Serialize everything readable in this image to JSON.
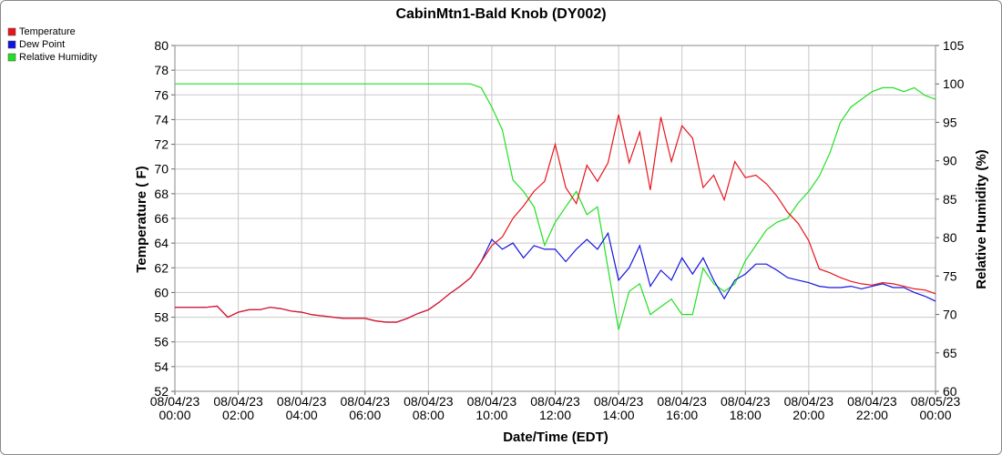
{
  "chart_data": {
    "type": "line",
    "title": "CabinMtn1-Bald Knob (DY002)",
    "x_label": "Date/Time (EDT)",
    "y_label": "Temperature ( F)",
    "y2_label": "Relative Humidity (%)",
    "x": [
      "08/04/23 00:00",
      "08/04/23 00:20",
      "08/04/23 00:40",
      "08/04/23 01:00",
      "08/04/23 01:20",
      "08/04/23 01:40",
      "08/04/23 02:00",
      "08/04/23 02:20",
      "08/04/23 02:40",
      "08/04/23 03:00",
      "08/04/23 03:20",
      "08/04/23 03:40",
      "08/04/23 04:00",
      "08/04/23 04:20",
      "08/04/23 04:40",
      "08/04/23 05:00",
      "08/04/23 05:20",
      "08/04/23 05:40",
      "08/04/23 06:00",
      "08/04/23 06:20",
      "08/04/23 06:40",
      "08/04/23 07:00",
      "08/04/23 07:20",
      "08/04/23 07:40",
      "08/04/23 08:00",
      "08/04/23 08:20",
      "08/04/23 08:40",
      "08/04/23 09:00",
      "08/04/23 09:20",
      "08/04/23 09:40",
      "08/04/23 10:00",
      "08/04/23 10:20",
      "08/04/23 10:40",
      "08/04/23 11:00",
      "08/04/23 11:20",
      "08/04/23 11:40",
      "08/04/23 12:00",
      "08/04/23 12:20",
      "08/04/23 12:40",
      "08/04/23 13:00",
      "08/04/23 13:20",
      "08/04/23 13:40",
      "08/04/23 14:00",
      "08/04/23 14:20",
      "08/04/23 14:40",
      "08/04/23 15:00",
      "08/04/23 15:20",
      "08/04/23 15:40",
      "08/04/23 16:00",
      "08/04/23 16:20",
      "08/04/23 16:40",
      "08/04/23 17:00",
      "08/04/23 17:20",
      "08/04/23 17:40",
      "08/04/23 18:00",
      "08/04/23 18:20",
      "08/04/23 18:40",
      "08/04/23 19:00",
      "08/04/23 19:20",
      "08/04/23 19:40",
      "08/04/23 20:00",
      "08/04/23 20:20",
      "08/04/23 20:40",
      "08/04/23 21:00",
      "08/04/23 21:20",
      "08/04/23 21:40",
      "08/04/23 22:00",
      "08/04/23 22:20",
      "08/04/23 22:40",
      "08/04/23 23:00",
      "08/04/23 23:20",
      "08/04/23 23:40",
      "08/05/23 00:00"
    ],
    "series": [
      {
        "name": "Temperature",
        "color": "#e8141c",
        "values": [
          58.8,
          58.8,
          58.8,
          58.8,
          58.9,
          58.0,
          58.4,
          58.6,
          58.6,
          58.8,
          58.7,
          58.5,
          58.4,
          58.2,
          58.1,
          58.0,
          57.9,
          57.9,
          57.9,
          57.7,
          57.6,
          57.6,
          57.9,
          58.3,
          58.6,
          59.2,
          59.9,
          60.5,
          61.2,
          62.5,
          63.8,
          64.5,
          66.0,
          67.0,
          68.2,
          69.0,
          72.0,
          68.5,
          67.2,
          70.3,
          69.0,
          70.5,
          74.4,
          70.5,
          73.0,
          68.3,
          74.2,
          70.6,
          73.5,
          72.5,
          68.5,
          69.5,
          67.5,
          70.6,
          69.3,
          69.5,
          68.8,
          67.8,
          66.5,
          65.6,
          64.2,
          61.9,
          61.6,
          61.2,
          60.9,
          60.7,
          60.6,
          60.8,
          60.7,
          60.5,
          60.3,
          60.2,
          59.9
        ]
      },
      {
        "name": "Dew Point",
        "color": "#1414e0",
        "values": [
          58.8,
          58.8,
          58.8,
          58.8,
          58.9,
          58.0,
          58.4,
          58.6,
          58.6,
          58.8,
          58.7,
          58.5,
          58.4,
          58.2,
          58.1,
          58.0,
          57.9,
          57.9,
          57.9,
          57.7,
          57.6,
          57.6,
          57.9,
          58.3,
          58.6,
          59.2,
          59.9,
          60.5,
          61.2,
          62.5,
          64.3,
          63.5,
          64.0,
          62.8,
          63.8,
          63.5,
          63.5,
          62.5,
          63.5,
          64.3,
          63.5,
          64.8,
          61.0,
          62.0,
          63.8,
          60.5,
          61.8,
          61.0,
          62.8,
          61.5,
          62.8,
          61.0,
          59.5,
          61.0,
          61.5,
          62.3,
          62.3,
          61.8,
          61.2,
          61.0,
          60.8,
          60.5,
          60.4,
          60.4,
          60.5,
          60.3,
          60.5,
          60.7,
          60.4,
          60.4,
          60.0,
          59.7,
          59.3
        ]
      },
      {
        "name": "Relative Humidity",
        "color": "#22e022",
        "axis": "y2",
        "values": [
          100,
          100,
          100,
          100,
          100,
          100,
          100,
          100,
          100,
          100,
          100,
          100,
          100,
          100,
          100,
          100,
          100,
          100,
          100,
          100,
          100,
          100,
          100,
          100,
          100,
          100,
          100,
          100,
          100,
          99.5,
          97.0,
          94.0,
          87.5,
          86.0,
          84.0,
          79.0,
          82.0,
          84.0,
          86.0,
          83.0,
          84.0,
          76.0,
          68.0,
          73.0,
          74.0,
          70.0,
          71.0,
          72.0,
          70.0,
          70.0,
          76.0,
          74.0,
          73.0,
          74.0,
          77.0,
          79.0,
          81.0,
          82.0,
          82.5,
          84.5,
          86.0,
          88.0,
          91.0,
          95.0,
          97.0,
          98.0,
          99.0,
          99.5,
          99.5,
          99.0,
          99.5,
          98.5,
          98.0
        ]
      }
    ],
    "xlim": [
      "08/04/23 00:00",
      "08/05/23 00:00"
    ],
    "xticks": [
      "08/04/23 00:00",
      "08/04/23 02:00",
      "08/04/23 04:00",
      "08/04/23 06:00",
      "08/04/23 08:00",
      "08/04/23 10:00",
      "08/04/23 12:00",
      "08/04/23 14:00",
      "08/04/23 16:00",
      "08/04/23 18:00",
      "08/04/23 20:00",
      "08/04/23 22:00",
      "08/05/23 00:00"
    ],
    "ylim": [
      52,
      80
    ],
    "yticks": [
      52,
      54,
      56,
      58,
      60,
      62,
      64,
      66,
      68,
      70,
      72,
      74,
      76,
      78,
      80
    ],
    "y2lim": [
      60,
      105
    ],
    "y2ticks": [
      60,
      65,
      70,
      75,
      80,
      85,
      90,
      95,
      100,
      105
    ],
    "grid": true,
    "legend": "top-left"
  }
}
